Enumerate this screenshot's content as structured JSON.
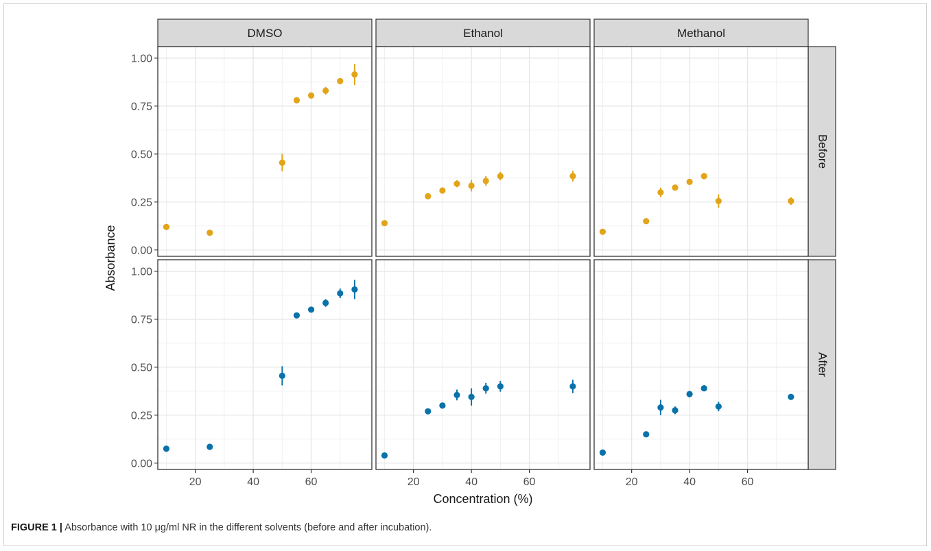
{
  "chart_data": {
    "type": "scatter",
    "facet_columns": [
      "DMSO",
      "Ethanol",
      "Methanol"
    ],
    "facet_rows": [
      "Before",
      "After"
    ],
    "xlabel": "Concentration (%)",
    "ylabel": "Absorbance",
    "xlim": [
      8,
      80
    ],
    "ylim": [
      0,
      1.0
    ],
    "x_ticks": [
      20,
      40,
      60
    ],
    "x_tick_labels": [
      "20",
      "40",
      "60"
    ],
    "y_ticks": [
      0,
      0.25,
      0.5,
      0.75,
      1.0
    ],
    "y_tick_labels": [
      "0.00",
      "0.25",
      "0.50",
      "0.75",
      "1.00"
    ],
    "grid": true,
    "colors": {
      "Before": "#E2A419",
      "After": "#0A72AA"
    },
    "panels": [
      {
        "column": "DMSO",
        "row": "Before",
        "points": [
          {
            "x": 10,
            "y": 0.12,
            "err": 0
          },
          {
            "x": 25,
            "y": 0.09,
            "err": 0
          },
          {
            "x": 50,
            "y": 0.455,
            "err": 0.045
          },
          {
            "x": 55,
            "y": 0.78,
            "err": 0
          },
          {
            "x": 60,
            "y": 0.805,
            "err": 0
          },
          {
            "x": 65,
            "y": 0.83,
            "err": 0.02
          },
          {
            "x": 70,
            "y": 0.88,
            "err": 0
          },
          {
            "x": 75,
            "y": 0.915,
            "err": 0.055
          }
        ]
      },
      {
        "column": "Ethanol",
        "row": "Before",
        "points": [
          {
            "x": 10,
            "y": 0.14,
            "err": 0
          },
          {
            "x": 25,
            "y": 0.28,
            "err": 0
          },
          {
            "x": 30,
            "y": 0.31,
            "err": 0
          },
          {
            "x": 35,
            "y": 0.345,
            "err": 0.018
          },
          {
            "x": 40,
            "y": 0.335,
            "err": 0.03
          },
          {
            "x": 45,
            "y": 0.36,
            "err": 0.025
          },
          {
            "x": 50,
            "y": 0.385,
            "err": 0.022
          },
          {
            "x": 75,
            "y": 0.385,
            "err": 0.028
          }
        ]
      },
      {
        "column": "Methanol",
        "row": "Before",
        "points": [
          {
            "x": 10,
            "y": 0.095,
            "err": 0
          },
          {
            "x": 25,
            "y": 0.15,
            "err": 0
          },
          {
            "x": 30,
            "y": 0.3,
            "err": 0.025
          },
          {
            "x": 35,
            "y": 0.325,
            "err": 0
          },
          {
            "x": 40,
            "y": 0.355,
            "err": 0
          },
          {
            "x": 45,
            "y": 0.385,
            "err": 0
          },
          {
            "x": 50,
            "y": 0.255,
            "err": 0.035
          },
          {
            "x": 75,
            "y": 0.255,
            "err": 0.02
          }
        ]
      },
      {
        "column": "DMSO",
        "row": "After",
        "points": [
          {
            "x": 10,
            "y": 0.075,
            "err": 0
          },
          {
            "x": 25,
            "y": 0.085,
            "err": 0
          },
          {
            "x": 50,
            "y": 0.455,
            "err": 0.05
          },
          {
            "x": 55,
            "y": 0.77,
            "err": 0
          },
          {
            "x": 60,
            "y": 0.8,
            "err": 0
          },
          {
            "x": 65,
            "y": 0.835,
            "err": 0.02
          },
          {
            "x": 70,
            "y": 0.885,
            "err": 0.025
          },
          {
            "x": 75,
            "y": 0.905,
            "err": 0.05
          }
        ]
      },
      {
        "column": "Ethanol",
        "row": "After",
        "points": [
          {
            "x": 10,
            "y": 0.04,
            "err": 0
          },
          {
            "x": 25,
            "y": 0.27,
            "err": 0
          },
          {
            "x": 30,
            "y": 0.3,
            "err": 0
          },
          {
            "x": 35,
            "y": 0.355,
            "err": 0.028
          },
          {
            "x": 40,
            "y": 0.345,
            "err": 0.045
          },
          {
            "x": 45,
            "y": 0.39,
            "err": 0.028
          },
          {
            "x": 50,
            "y": 0.4,
            "err": 0.028
          },
          {
            "x": 75,
            "y": 0.4,
            "err": 0.035
          }
        ]
      },
      {
        "column": "Methanol",
        "row": "After",
        "points": [
          {
            "x": 10,
            "y": 0.055,
            "err": 0
          },
          {
            "x": 25,
            "y": 0.15,
            "err": 0
          },
          {
            "x": 30,
            "y": 0.29,
            "err": 0.04
          },
          {
            "x": 35,
            "y": 0.275,
            "err": 0.02
          },
          {
            "x": 40,
            "y": 0.36,
            "err": 0
          },
          {
            "x": 45,
            "y": 0.39,
            "err": 0
          },
          {
            "x": 50,
            "y": 0.295,
            "err": 0.025
          },
          {
            "x": 75,
            "y": 0.345,
            "err": 0.012
          }
        ]
      }
    ]
  },
  "caption": {
    "label": "FIGURE 1 |",
    "text": " Absorbance with 10 μg/ml NR in the different solvents (before and after incubation)."
  }
}
